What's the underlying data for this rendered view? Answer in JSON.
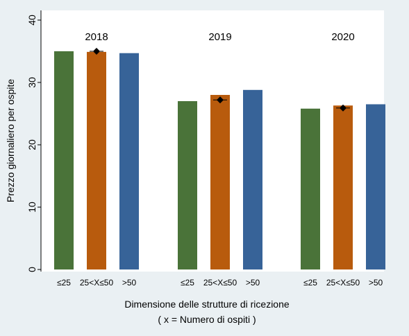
{
  "chart_data": {
    "type": "bar",
    "ylabel": "Prezzo giornaliero per ospite",
    "xlabel": "Dimensione delle strutture di ricezione",
    "xlabel_note": "( x = Numero di ospiti )",
    "ylim": [
      0,
      40
    ],
    "yticks": [
      0,
      10,
      20,
      30,
      40
    ],
    "grid": false,
    "categories": [
      "≤25",
      "25<X≤50",
      ">50"
    ],
    "colors": [
      "#4a7339",
      "#b85b0d",
      "#376398"
    ],
    "marker_color": "#000000",
    "groups": [
      {
        "label": "2018",
        "values": [
          35.0,
          34.9,
          34.7
        ],
        "marker": 35.0
      },
      {
        "label": "2019",
        "values": [
          27.0,
          28.0,
          28.8
        ],
        "marker": 27.2
      },
      {
        "label": "2020",
        "values": [
          25.8,
          26.3,
          26.5
        ],
        "marker": 25.9
      }
    ]
  }
}
